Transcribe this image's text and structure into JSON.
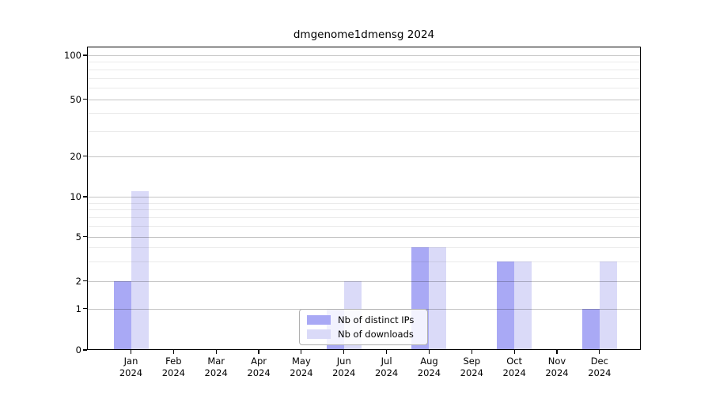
{
  "title": "dmgenome1dmensg 2024",
  "chart_data": {
    "type": "bar",
    "title": "dmgenome1dmensg 2024",
    "categories": [
      "Jan 2024",
      "Feb 2024",
      "Mar 2024",
      "Apr 2024",
      "May 2024",
      "Jun 2024",
      "Jul 2024",
      "Aug 2024",
      "Sep 2024",
      "Oct 2024",
      "Nov 2024",
      "Dec 2024"
    ],
    "series": [
      {
        "name": "Nb of distinct IPs",
        "color": "#a9a9f5",
        "values": [
          2,
          0,
          0,
          0,
          0,
          1,
          0,
          4,
          0,
          3,
          0,
          1
        ]
      },
      {
        "name": "Nb of downloads",
        "color": "#dadaf8",
        "values": [
          11,
          0,
          0,
          0,
          0,
          2,
          0,
          4,
          0,
          3,
          0,
          3
        ]
      }
    ],
    "xlabel": "",
    "ylabel": "",
    "yscale": "log-like",
    "ylim": [
      0,
      100
    ],
    "yticks": [
      0,
      1,
      2,
      5,
      10,
      20,
      50,
      100
    ],
    "minor_yticks": [
      3,
      4,
      6,
      7,
      8,
      9,
      30,
      40,
      60,
      70,
      80,
      90
    ],
    "grid": true,
    "legend_position": "lower-center"
  },
  "colors": {
    "background": "#ffffff",
    "spine": "#000000",
    "grid_major": "#c4c4c4",
    "grid_minor": "#ebebeb",
    "legend_border": "#b0b0b0"
  }
}
